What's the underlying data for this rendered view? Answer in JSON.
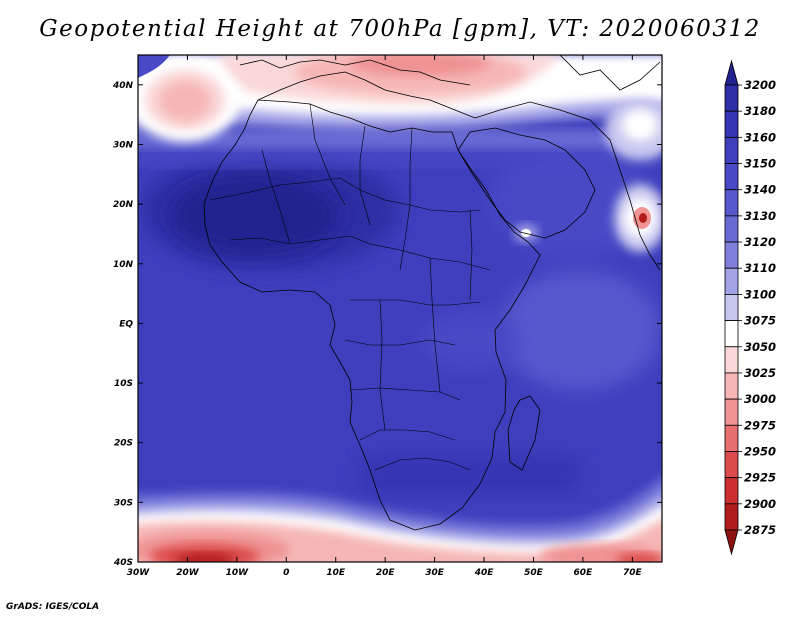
{
  "title": "Geopotential Height at 700hPa [gpm], VT: 2020060312",
  "credit": "GrADS: IGES/COLA",
  "map": {
    "lon_range": [
      -30,
      76
    ],
    "lat_range": [
      -40,
      45
    ],
    "lon_ticks": [
      "30W",
      "20W",
      "10W",
      "0",
      "10E",
      "20E",
      "30E",
      "40E",
      "50E",
      "60E",
      "70E"
    ],
    "lon_tick_values": [
      -30,
      -20,
      -10,
      0,
      10,
      20,
      30,
      40,
      50,
      60,
      70
    ],
    "lat_ticks": [
      "40N",
      "30N",
      "20N",
      "10N",
      "EQ",
      "10S",
      "20S",
      "30S",
      "40S"
    ],
    "lat_tick_values": [
      40,
      30,
      20,
      10,
      0,
      -10,
      -20,
      -30,
      -40
    ]
  },
  "colorbar": {
    "levels": [
      "3200",
      "3180",
      "3160",
      "3150",
      "3140",
      "3130",
      "3120",
      "3110",
      "3100",
      "3075",
      "3050",
      "3025",
      "3000",
      "2975",
      "2950",
      "2925",
      "2900",
      "2875"
    ],
    "colors": [
      "#23238f",
      "#2d2da5",
      "#3636b4",
      "#3f3fbe",
      "#4a4ac6",
      "#5858cd",
      "#6a6ad5",
      "#8080dc",
      "#a2a2e6",
      "#c9c9f0",
      "#ffffff",
      "#fbd7d7",
      "#f6b6b6",
      "#ef9393",
      "#e66e6e",
      "#dc4b4b",
      "#cc2f2f",
      "#b01b1b",
      "#8e1010"
    ]
  }
}
